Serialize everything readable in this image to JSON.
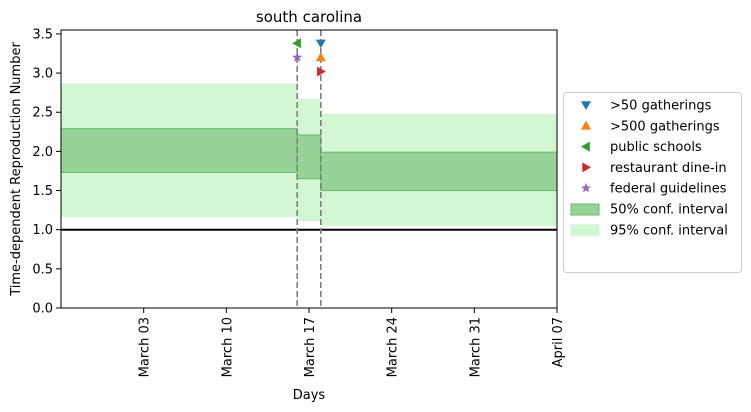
{
  "chart_data": {
    "type": "area",
    "title": "south carolina",
    "xlabel": "Days",
    "ylabel": "Time-dependent Reproduction Number",
    "ylim": [
      0,
      3.55
    ],
    "yticks": [
      0.0,
      0.5,
      1.0,
      1.5,
      2.0,
      2.5,
      3.0,
      3.5
    ],
    "ytick_labels": [
      "0.0",
      "0.5",
      "1.0",
      "1.5",
      "2.0",
      "2.5",
      "3.0",
      "3.5"
    ],
    "xlim": [
      "2020-02-25",
      "2020-04-07"
    ],
    "xticks": [
      {
        "date": "2020-03-03",
        "label": "March 03"
      },
      {
        "date": "2020-03-10",
        "label": "March 10"
      },
      {
        "date": "2020-03-17",
        "label": "March 17"
      },
      {
        "date": "2020-03-24",
        "label": "March 24"
      },
      {
        "date": "2020-03-31",
        "label": "March 31"
      },
      {
        "date": "2020-04-07",
        "label": "April 07"
      }
    ],
    "reference_line": {
      "y": 1.0,
      "color": "#000000"
    },
    "intervention_lines": [
      {
        "date": "2020-03-16",
        "color": "#7f7f7f",
        "style": "dashed"
      },
      {
        "date": "2020-03-18",
        "color": "#7f7f7f",
        "style": "dashed"
      }
    ],
    "ci95": {
      "name": "95% conf. interval",
      "color": "#d2f7d2",
      "segments": [
        {
          "start": "2020-02-25",
          "end": "2020-03-16",
          "low": 1.16,
          "high": 2.87
        },
        {
          "start": "2020-03-16",
          "end": "2020-03-18",
          "low": 1.11,
          "high": 2.67
        },
        {
          "start": "2020-03-18",
          "end": "2020-04-07",
          "low": 1.05,
          "high": 2.48
        }
      ]
    },
    "ci50": {
      "name": "50% conf. interval",
      "color": "#97d397",
      "edge": "#6dba6d",
      "segments": [
        {
          "start": "2020-02-25",
          "end": "2020-03-16",
          "low": 1.73,
          "high": 2.29
        },
        {
          "start": "2020-03-16",
          "end": "2020-03-18",
          "low": 1.65,
          "high": 2.21
        },
        {
          "start": "2020-03-18",
          "end": "2020-04-07",
          "low": 1.5,
          "high": 1.99
        }
      ]
    },
    "markers": [
      {
        "name": ">50 gatherings",
        "marker": "triangle-down",
        "color": "#1f77b4",
        "date": "2020-03-18",
        "y": 3.38
      },
      {
        "name": ">500 gatherings",
        "marker": "triangle-up",
        "color": "#ff7f0e",
        "date": "2020-03-18",
        "y": 3.2
      },
      {
        "name": "public schools",
        "marker": "triangle-left",
        "color": "#2ca02c",
        "date": "2020-03-16",
        "y": 3.38
      },
      {
        "name": "restaurant dine-in",
        "marker": "triangle-right",
        "color": "#d62728",
        "date": "2020-03-18",
        "y": 3.02
      },
      {
        "name": "federal guidelines",
        "marker": "star",
        "color": "#9467bd",
        "date": "2020-03-16",
        "y": 3.2
      }
    ],
    "legend": {
      "placement": "center-right-outside",
      "entries": [
        {
          "label": ">50 gatherings",
          "kind": "marker",
          "ref": 0
        },
        {
          "label": ">500 gatherings",
          "kind": "marker",
          "ref": 1
        },
        {
          "label": "public schools",
          "kind": "marker",
          "ref": 2
        },
        {
          "label": "restaurant dine-in",
          "kind": "marker",
          "ref": 3
        },
        {
          "label": "federal guidelines",
          "kind": "marker",
          "ref": 4
        },
        {
          "label": "50% conf. interval",
          "kind": "patch50"
        },
        {
          "label": "95% conf. interval",
          "kind": "patch95"
        }
      ]
    }
  }
}
